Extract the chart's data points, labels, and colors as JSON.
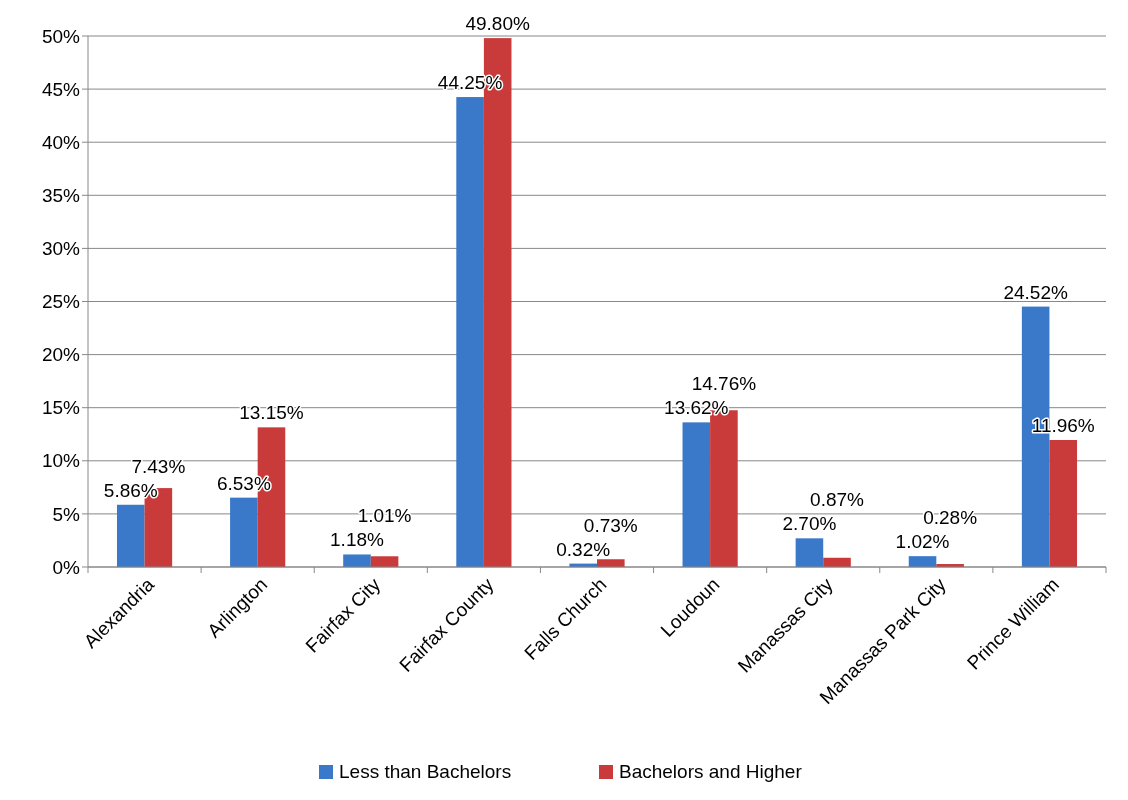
{
  "chart_data": {
    "type": "bar",
    "categories": [
      "Alexandria",
      "Arlington",
      "Fairfax City",
      "Fairfax County",
      "Falls Church",
      "Loudoun",
      "Manassas City",
      "Manassas Park City",
      "Prince William"
    ],
    "series": [
      {
        "name": "Less than Bachelors",
        "color": "#3a78c9",
        "values": [
          5.86,
          6.53,
          1.18,
          44.25,
          0.32,
          13.62,
          2.7,
          1.02,
          24.52
        ],
        "value_labels": [
          "5.86%",
          "6.53%",
          "1.18%",
          "44.25%",
          "0.32%",
          "13.62%",
          "2.70%",
          "1.02%",
          "24.52%"
        ]
      },
      {
        "name": "Bachelors and Higher",
        "color": "#c93a3a",
        "values": [
          7.43,
          13.15,
          1.01,
          49.8,
          0.73,
          14.76,
          0.87,
          0.28,
          11.96
        ],
        "value_labels": [
          "7.43%",
          "13.15%",
          "1.01%",
          "49.80%",
          "0.73%",
          "14.76%",
          "0.87%",
          "0.28%",
          "11.96%"
        ]
      }
    ],
    "ylim": [
      0,
      50
    ],
    "yticks": [
      {
        "value": 0,
        "label": "0%"
      },
      {
        "value": 5,
        "label": "5%"
      },
      {
        "value": 10,
        "label": "10%"
      },
      {
        "value": 15,
        "label": "15%"
      },
      {
        "value": 20,
        "label": "20%"
      },
      {
        "value": 25,
        "label": "25%"
      },
      {
        "value": 30,
        "label": "30%"
      },
      {
        "value": 35,
        "label": "35%"
      },
      {
        "value": 40,
        "label": "40%"
      },
      {
        "value": 45,
        "label": "45%"
      },
      {
        "value": 50,
        "label": "50%"
      }
    ],
    "grid": "y",
    "legend": "bottom"
  }
}
